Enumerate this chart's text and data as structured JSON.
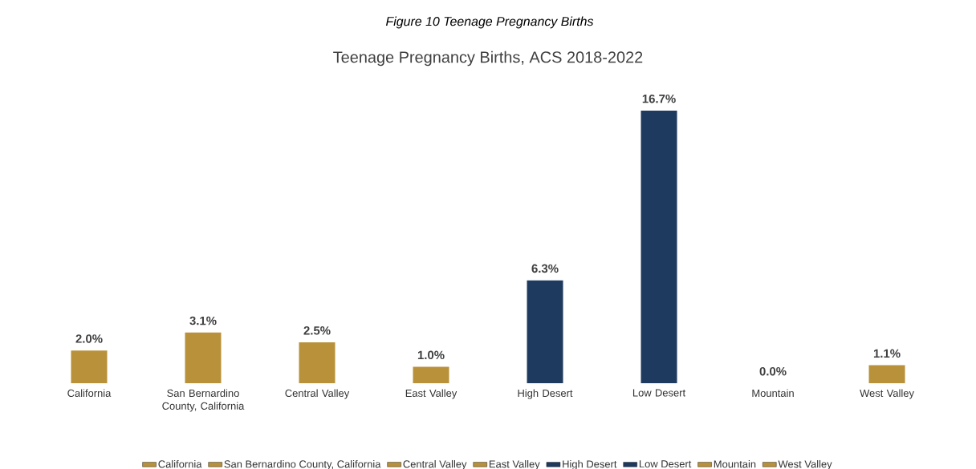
{
  "chart_data": {
    "type": "bar",
    "title": "Teenage Pregnancy Births, ACS 2018-2022",
    "annotations": [
      "Figure 10 Teenage Pregnancy Births"
    ],
    "categories": [
      "California",
      "San Bernardino County, California",
      "Central Valley",
      "East Valley",
      "High Desert",
      "Low Desert",
      "Mountain",
      "West Valley"
    ],
    "series": [
      {
        "name": "California",
        "color": "#b8913a",
        "values": [
          2.0,
          null,
          null,
          null,
          null,
          null,
          null,
          null
        ],
        "value_labels": [
          "2.0%",
          null,
          null,
          null,
          null,
          null,
          null,
          null
        ]
      },
      {
        "name": "San Bernardino County, California",
        "color": "#b8913a",
        "values": [
          null,
          3.1,
          null,
          null,
          null,
          null,
          null,
          null
        ],
        "value_labels": [
          null,
          "3.1%",
          null,
          null,
          null,
          null,
          null,
          null
        ]
      },
      {
        "name": "Central Valley",
        "color": "#b8913a",
        "values": [
          null,
          null,
          2.5,
          null,
          null,
          null,
          null,
          null
        ],
        "value_labels": [
          null,
          null,
          "2.5%",
          null,
          null,
          null,
          null,
          null
        ]
      },
      {
        "name": "East Valley",
        "color": "#b8913a",
        "values": [
          null,
          null,
          null,
          1.0,
          null,
          null,
          null,
          null
        ],
        "value_labels": [
          null,
          null,
          null,
          "1.0%",
          null,
          null,
          null,
          null
        ]
      },
      {
        "name": "High Desert",
        "color": "#1f3a5f",
        "values": [
          null,
          null,
          null,
          null,
          6.3,
          null,
          null,
          null
        ],
        "value_labels": [
          null,
          null,
          null,
          null,
          "6.3%",
          null,
          null,
          null
        ]
      },
      {
        "name": "Low Desert",
        "color": "#1f3a5f",
        "values": [
          null,
          null,
          null,
          null,
          null,
          16.7,
          null,
          null
        ],
        "value_labels": [
          null,
          null,
          null,
          null,
          null,
          "16.7%",
          null,
          null
        ]
      },
      {
        "name": "Mountain",
        "color": "#b8913a",
        "values": [
          null,
          null,
          null,
          null,
          null,
          null,
          0.0,
          null
        ],
        "value_labels": [
          null,
          null,
          null,
          null,
          null,
          null,
          "0.0%",
          null
        ]
      },
      {
        "name": "West Valley",
        "color": "#b8913a",
        "values": [
          null,
          null,
          null,
          null,
          null,
          null,
          null,
          1.1
        ],
        "value_labels": [
          null,
          null,
          null,
          null,
          null,
          null,
          null,
          "1.1%"
        ]
      }
    ],
    "legend": "bottom",
    "grid": false
  }
}
